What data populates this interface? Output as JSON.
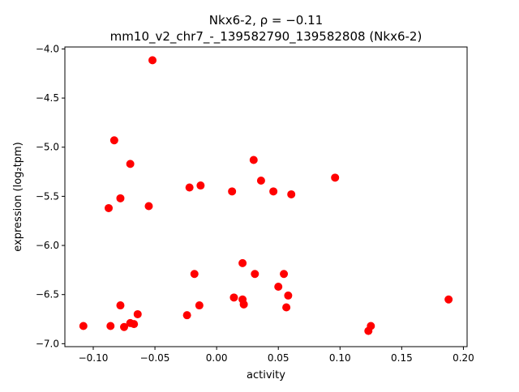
{
  "chart_data": {
    "type": "scatter",
    "title_line1": "Nkx6-2, ρ = −0.11",
    "title_line2": "mm10_v2_chr7_-_139582790_139582808 (Nkx6-2)",
    "xlabel": "activity",
    "ylabel": "expression (log₂tpm)",
    "xlim": [
      -0.123,
      0.203
    ],
    "ylim": [
      -7.03,
      -3.98
    ],
    "xticks": [
      -0.1,
      -0.05,
      0.0,
      0.05,
      0.1,
      0.15,
      0.2
    ],
    "xtick_labels": [
      "−0.10",
      "−0.05",
      "0.00",
      "0.05",
      "0.10",
      "0.15",
      "0.20"
    ],
    "yticks": [
      -4.0,
      -4.5,
      -5.0,
      -5.5,
      -6.0,
      -6.5,
      -7.0
    ],
    "ytick_labels": [
      "−4.0",
      "−4.5",
      "−5.0",
      "−5.5",
      "−6.0",
      "−6.5",
      "−7.0"
    ],
    "grid": false,
    "marker_color": "#ff0000",
    "points": [
      [
        -0.052,
        -4.115
      ],
      [
        -0.083,
        -4.93
      ],
      [
        -0.07,
        -5.17
      ],
      [
        -0.078,
        -5.52
      ],
      [
        -0.0875,
        -5.62
      ],
      [
        -0.055,
        -5.6
      ],
      [
        -0.022,
        -5.41
      ],
      [
        -0.013,
        -5.39
      ],
      [
        0.0125,
        -5.45
      ],
      [
        0.03,
        -5.13
      ],
      [
        0.036,
        -5.34
      ],
      [
        0.046,
        -5.45
      ],
      [
        0.0605,
        -5.48
      ],
      [
        0.096,
        -5.31
      ],
      [
        -0.018,
        -6.29
      ],
      [
        0.021,
        -6.18
      ],
      [
        0.031,
        -6.29
      ],
      [
        0.0545,
        -6.29
      ],
      [
        0.05,
        -6.42
      ],
      [
        0.058,
        -6.51
      ],
      [
        0.0565,
        -6.63
      ],
      [
        0.014,
        -6.53
      ],
      [
        0.021,
        -6.55
      ],
      [
        0.022,
        -6.6
      ],
      [
        -0.014,
        -6.61
      ],
      [
        -0.024,
        -6.71
      ],
      [
        -0.078,
        -6.61
      ],
      [
        -0.064,
        -6.7
      ],
      [
        -0.108,
        -6.82
      ],
      [
        -0.086,
        -6.82
      ],
      [
        -0.075,
        -6.83
      ],
      [
        -0.07,
        -6.79
      ],
      [
        -0.067,
        -6.8
      ],
      [
        0.125,
        -6.82
      ],
      [
        0.123,
        -6.87
      ],
      [
        0.188,
        -6.55
      ]
    ]
  }
}
